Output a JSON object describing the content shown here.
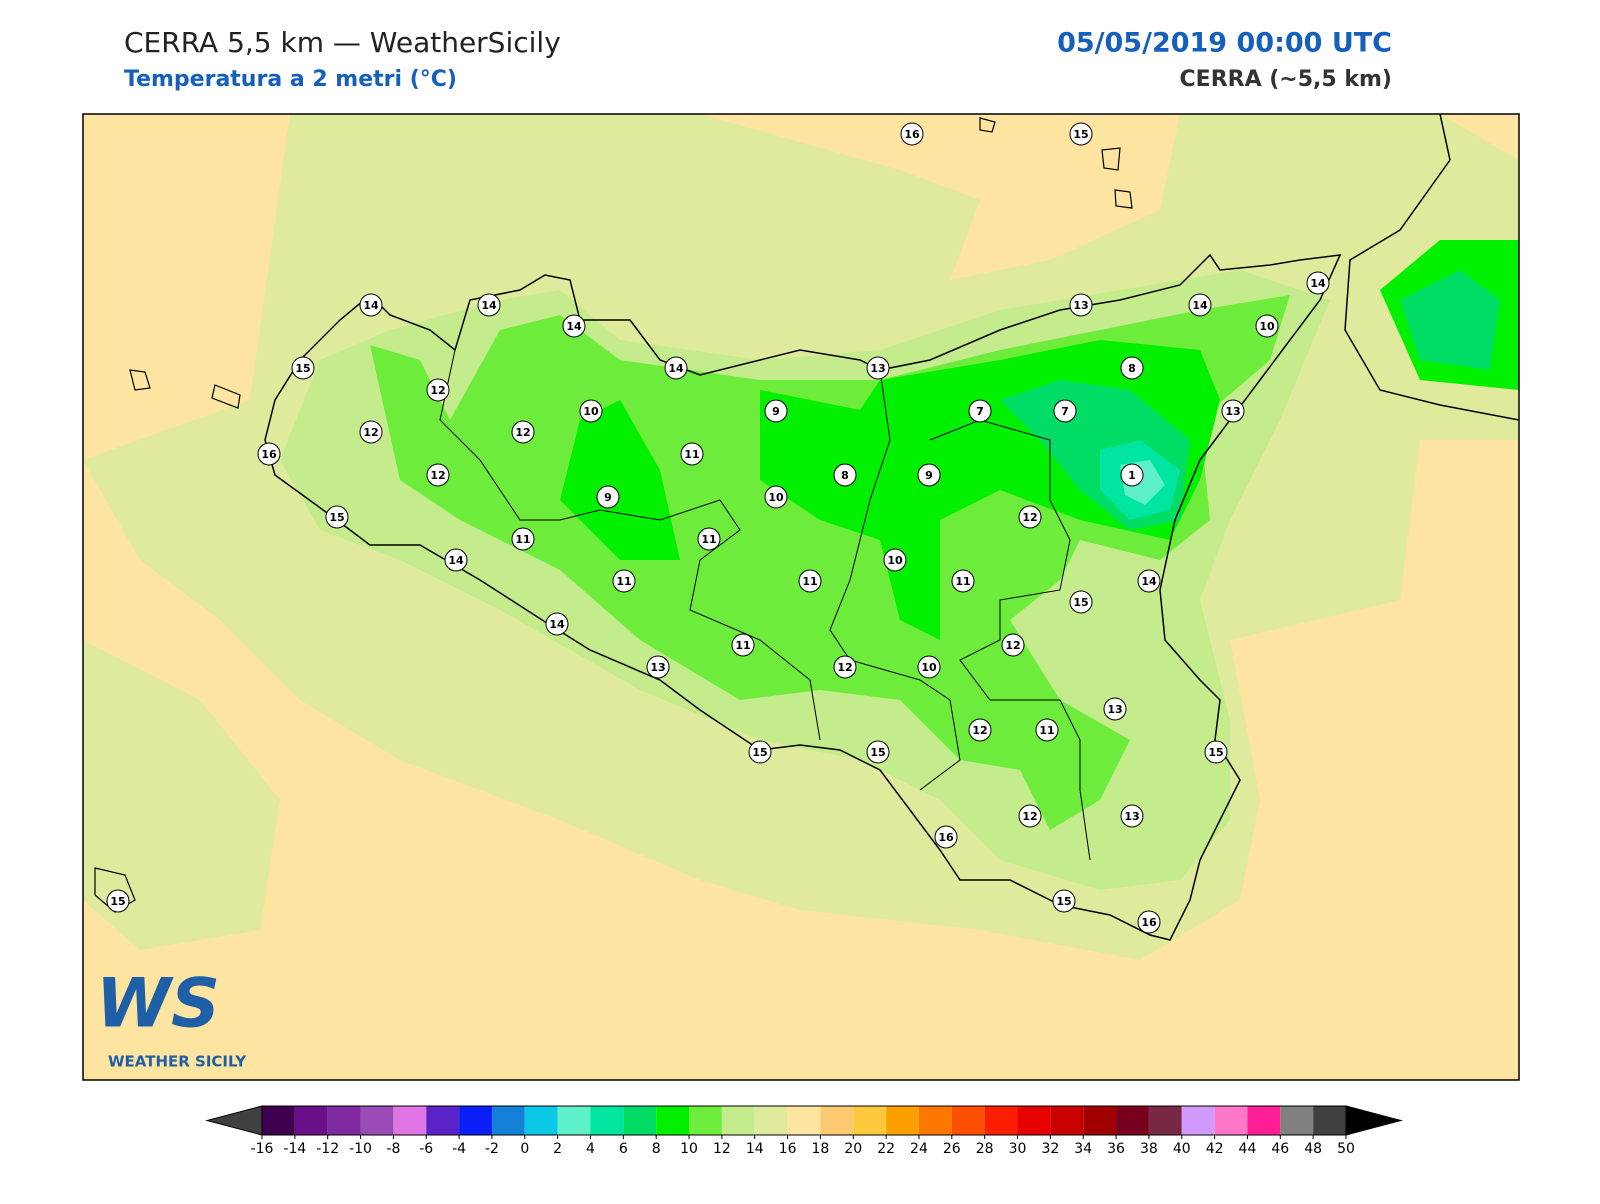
{
  "header": {
    "title": "CERRA 5,5 km — WeatherSicily",
    "subtitle": "Temperatura a 2 metri (°C)",
    "datetime": "05/05/2019 00:00 UTC",
    "model": "CERRA (~5,5 km)"
  },
  "stations": [
    16,
    15,
    14,
    14,
    14,
    15,
    12,
    12,
    12,
    10,
    14,
    9,
    13,
    13,
    14,
    14,
    10,
    8,
    7,
    7,
    13,
    1,
    16,
    12,
    11,
    8,
    9,
    9,
    10,
    15,
    11,
    11,
    12,
    14,
    11,
    11,
    10,
    11,
    14,
    15,
    14,
    11,
    12,
    13,
    12,
    10,
    13,
    12,
    11,
    15,
    15,
    15,
    12,
    13,
    16,
    15,
    16,
    15
  ],
  "colorbar": {
    "ticks": [
      -16,
      -14,
      -12,
      -10,
      -8,
      -6,
      -4,
      -2,
      0,
      2,
      4,
      6,
      8,
      10,
      12,
      14,
      16,
      18,
      20,
      22,
      24,
      26,
      28,
      30,
      32,
      34,
      36,
      38,
      40,
      42,
      44,
      46,
      48,
      50
    ],
    "colors": [
      "#3f0050",
      "#6a0f8a",
      "#7f2aa0",
      "#9b4bb5",
      "#e075e6",
      "#5b22c8",
      "#0a1ff5",
      "#1480d8",
      "#0ac8e6",
      "#5ef0c8",
      "#00e6a0",
      "#00dc64",
      "#00f000",
      "#6eec3c",
      "#c4ec8c",
      "#e0ea9c",
      "#fde4a0",
      "#fcc870",
      "#fcc83c",
      "#fca000",
      "#fc7800",
      "#fc5000",
      "#fc1e00",
      "#e60000",
      "#c80000",
      "#a00000",
      "#78001e",
      "#782846",
      "#d29aff",
      "#ff78c8",
      "#ff1e96",
      "#808080",
      "#404040"
    ],
    "under_color": "#404040",
    "over_color": "#000000"
  },
  "logo": {
    "mark": "WS",
    "name": "WEATHER SICILY"
  }
}
